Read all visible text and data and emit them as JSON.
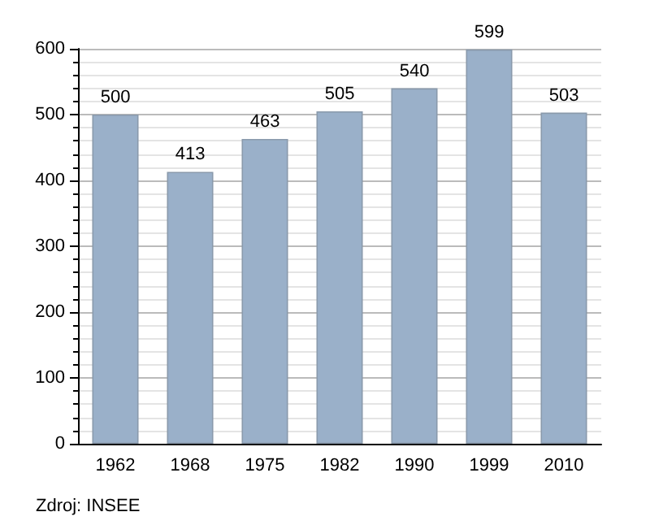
{
  "chart_data": {
    "type": "bar",
    "categories": [
      "1962",
      "1968",
      "1975",
      "1982",
      "1990",
      "1999",
      "2010"
    ],
    "values": [
      500,
      413,
      463,
      505,
      540,
      599,
      503
    ],
    "color": "#9ab0c9",
    "ylim": [
      0,
      600
    ],
    "yticks": [
      0,
      100,
      200,
      300,
      400,
      500,
      600
    ],
    "grid": "y",
    "data_labels": true,
    "annotations": [
      "Zdroj: INSEE"
    ]
  }
}
